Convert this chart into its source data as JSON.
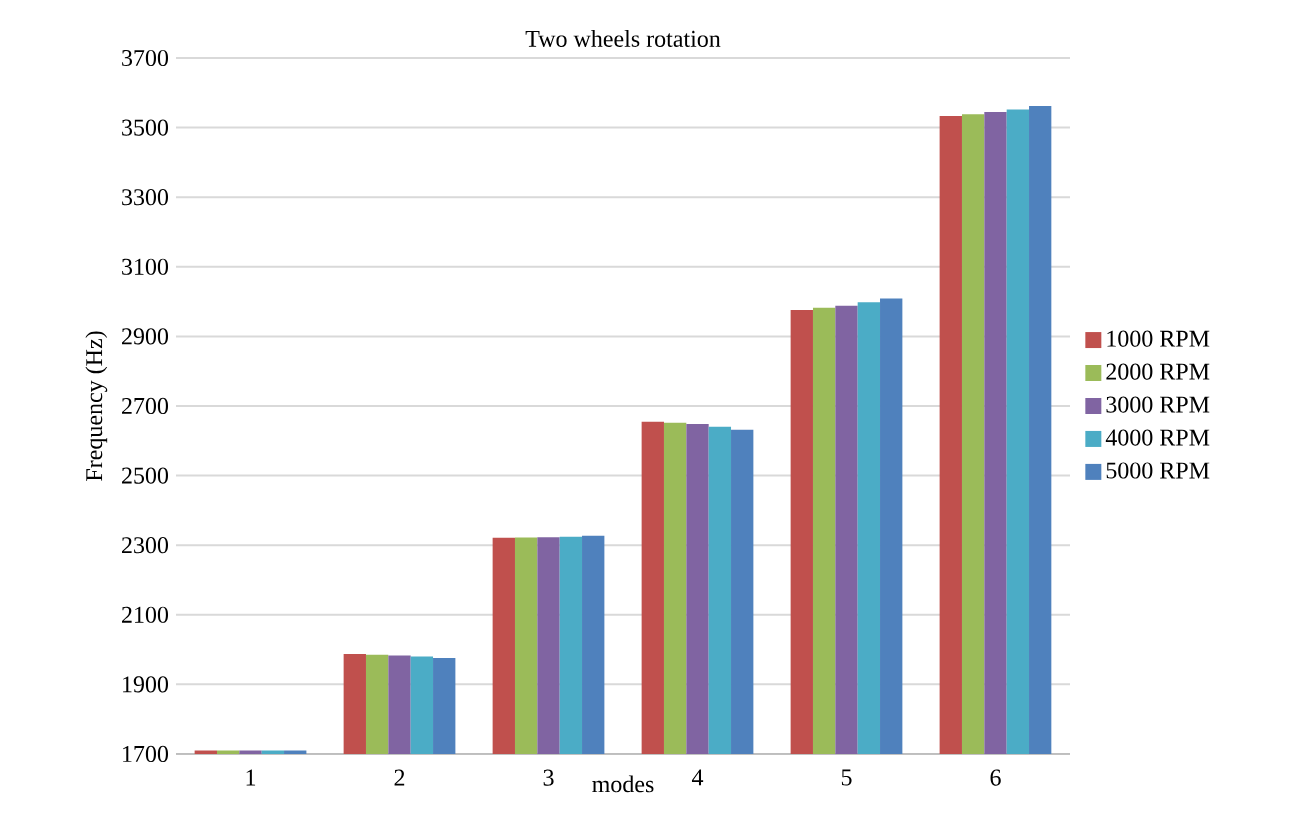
{
  "chart_data": {
    "type": "bar",
    "title": "Two wheels rotation",
    "xlabel": "modes",
    "ylabel": "Frequency (Hz)",
    "categories": [
      "1",
      "2",
      "3",
      "4",
      "5",
      "6"
    ],
    "series": [
      {
        "name": "1000 RPM",
        "color": "#c0504d",
        "values": [
          1710,
          1987,
          2321,
          2655,
          2976,
          3533
        ]
      },
      {
        "name": "2000 RPM",
        "color": "#9bbb59",
        "values": [
          1710,
          1985,
          2322,
          2652,
          2982,
          3538
        ]
      },
      {
        "name": "3000 RPM",
        "color": "#8064a2",
        "values": [
          1710,
          1983,
          2323,
          2648,
          2988,
          3545
        ]
      },
      {
        "name": "4000 RPM",
        "color": "#4bacc6",
        "values": [
          1710,
          1980,
          2324,
          2640,
          2998,
          3552
        ]
      },
      {
        "name": "5000 RPM",
        "color": "#4f81bd",
        "values": [
          1710,
          1976,
          2327,
          2632,
          3009,
          3562
        ]
      }
    ],
    "ylim": [
      1700,
      3700
    ],
    "yticks": [
      1700,
      1900,
      2100,
      2300,
      2500,
      2700,
      2900,
      3100,
      3300,
      3500,
      3700
    ],
    "grid": "y",
    "legend": "right"
  }
}
